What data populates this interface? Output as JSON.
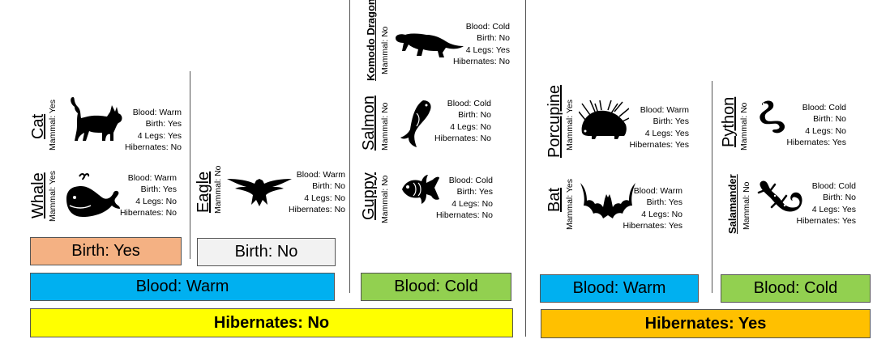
{
  "animals": {
    "cat": {
      "name": "Cat",
      "mammal": "Mammal: Yes",
      "blood": "Blood: Warm",
      "birth": "Birth: Yes",
      "legs": "4 Legs: Yes",
      "hibernates": "Hibernates: No",
      "icon": "cat-icon"
    },
    "whale": {
      "name": "Whale",
      "mammal": "Mammal: Yes",
      "blood": "Blood: Warm",
      "birth": "Birth: Yes",
      "legs": "4 Legs: No",
      "hibernates": "Hibernates: No",
      "icon": "whale-icon"
    },
    "eagle": {
      "name": "Eagle",
      "mammal": "Mammal: No",
      "blood": "Blood: Warm",
      "birth": "Birth: No",
      "legs": "4 Legs: No",
      "hibernates": "Hibernates: No",
      "icon": "eagle-icon"
    },
    "komodo": {
      "name": "Komodo Dragon",
      "mammal": "Mammal: No",
      "blood": "Blood: Cold",
      "birth": "Birth: No",
      "legs": "4 Legs: Yes",
      "hibernates": "Hibernates: No",
      "icon": "lizard-icon"
    },
    "salmon": {
      "name": "Salmon",
      "mammal": "Mammal: No",
      "blood": "Blood: Cold",
      "birth": "Birth: No",
      "legs": "4 Legs: No",
      "hibernates": "Hibernates: No",
      "icon": "salmon-icon"
    },
    "guppy": {
      "name": "Guppy",
      "mammal": "Mammal: No",
      "blood": "Blood: Cold",
      "birth": "Birth: Yes",
      "legs": "4 Legs: No",
      "hibernates": "Hibernates: No",
      "icon": "fish-icon"
    },
    "porcupine": {
      "name": "Porcupine",
      "mammal": "Mammal: Yes",
      "blood": "Blood: Warm",
      "birth": "Birth: Yes",
      "legs": "4 Legs: Yes",
      "hibernates": "Hibernates: Yes",
      "icon": "porcupine-icon"
    },
    "bat": {
      "name": "Bat",
      "mammal": "Mammal: Yes",
      "blood": "Blood: Warm",
      "birth": "Birth: Yes",
      "legs": "4 Legs: No",
      "hibernates": "Hibernates: Yes",
      "icon": "bat-icon"
    },
    "python": {
      "name": "Python",
      "mammal": "Mammal: No",
      "blood": "Blood: Cold",
      "birth": "Birth: No",
      "legs": "4 Legs: No",
      "hibernates": "Hibernates: Yes",
      "icon": "snake-icon"
    },
    "salamander": {
      "name": "Salamander",
      "mammal": "Mammal: No",
      "blood": "Blood: Cold",
      "birth": "Birth: No",
      "legs": "4 Legs: Yes",
      "hibernates": "Hibernates: Yes",
      "icon": "salamander-icon"
    }
  },
  "groups": {
    "birth_yes": {
      "label": "Birth: Yes",
      "color": "#f4b183"
    },
    "birth_no": {
      "label": "Birth: No",
      "color": "#f2f2f2"
    },
    "blood_warm_left": {
      "label": "Blood: Warm",
      "color": "#00b0f0"
    },
    "blood_cold_left": {
      "label": "Blood: Cold",
      "color": "#92d050"
    },
    "blood_warm_right": {
      "label": "Blood: Warm",
      "color": "#00b0f0"
    },
    "blood_cold_right": {
      "label": "Blood: Cold",
      "color": "#92d050"
    },
    "hibernates_no": {
      "label": "Hibernates: No",
      "color": "#ffff00"
    },
    "hibernates_yes": {
      "label": "Hibernates: Yes",
      "color": "#ffc000"
    }
  }
}
